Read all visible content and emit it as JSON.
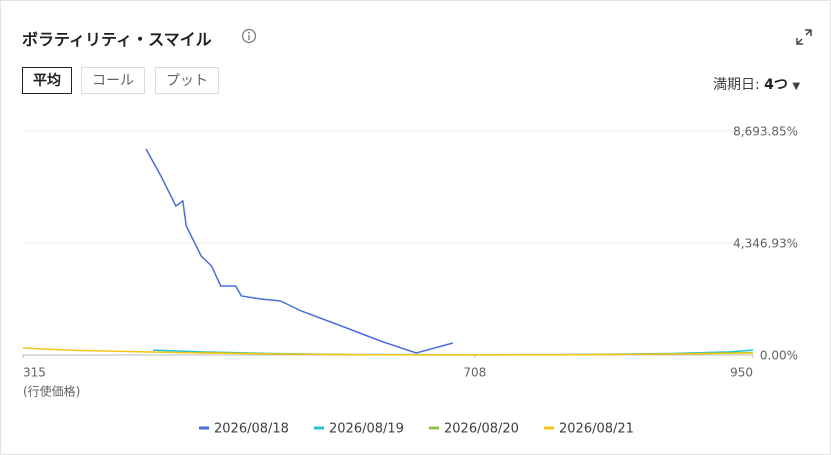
{
  "header": {
    "title": "ボラティリティ・スマイル",
    "buttons": [
      "平均",
      "コール",
      "プット"
    ],
    "expiry_label": "満期日:",
    "expiry_value": "4つ"
  },
  "chart_data": {
    "type": "line",
    "xlabel": "(行使価格)",
    "xlim": [
      315,
      950
    ],
    "xticks": [
      315,
      708,
      950
    ],
    "ylim": [
      0,
      8693.85
    ],
    "yticks": [
      {
        "value": 0,
        "label": "0.00%"
      },
      {
        "value": 4346.93,
        "label": "4,346.93%"
      },
      {
        "value": 8693.85,
        "label": "8,693.85%"
      }
    ],
    "grid": true,
    "series": [
      {
        "name": "2026/08/18",
        "color": "#4a6fdc",
        "x": [
          422,
          435,
          448,
          454,
          457,
          470,
          479,
          487,
          500,
          505,
          522,
          539,
          557,
          592,
          626,
          657,
          689
        ],
        "values": [
          7995,
          6947,
          5783,
          5977,
          5007,
          3842,
          3454,
          2678,
          2678,
          2290,
          2173,
          2096,
          1708,
          1126,
          543,
          78,
          466
        ]
      },
      {
        "name": "2026/08/19",
        "color": "#22c3cf",
        "x": [
          428,
          470,
          530,
          600,
          700,
          800,
          880,
          930,
          950
        ],
        "values": [
          190,
          120,
          60,
          20,
          10,
          20,
          60,
          120,
          190
        ]
      },
      {
        "name": "2026/08/20",
        "color": "#8bc34a",
        "x": [
          470,
          530,
          600,
          700,
          800,
          880,
          950
        ],
        "values": [
          100,
          40,
          10,
          5,
          15,
          40,
          90
        ]
      },
      {
        "name": "2026/08/21",
        "color": "#f5c518",
        "x": [
          315,
          360,
          420,
          470,
          540,
          620,
          700,
          800,
          880,
          950
        ],
        "values": [
          270,
          180,
          120,
          80,
          40,
          10,
          5,
          10,
          40,
          80
        ]
      }
    ]
  }
}
